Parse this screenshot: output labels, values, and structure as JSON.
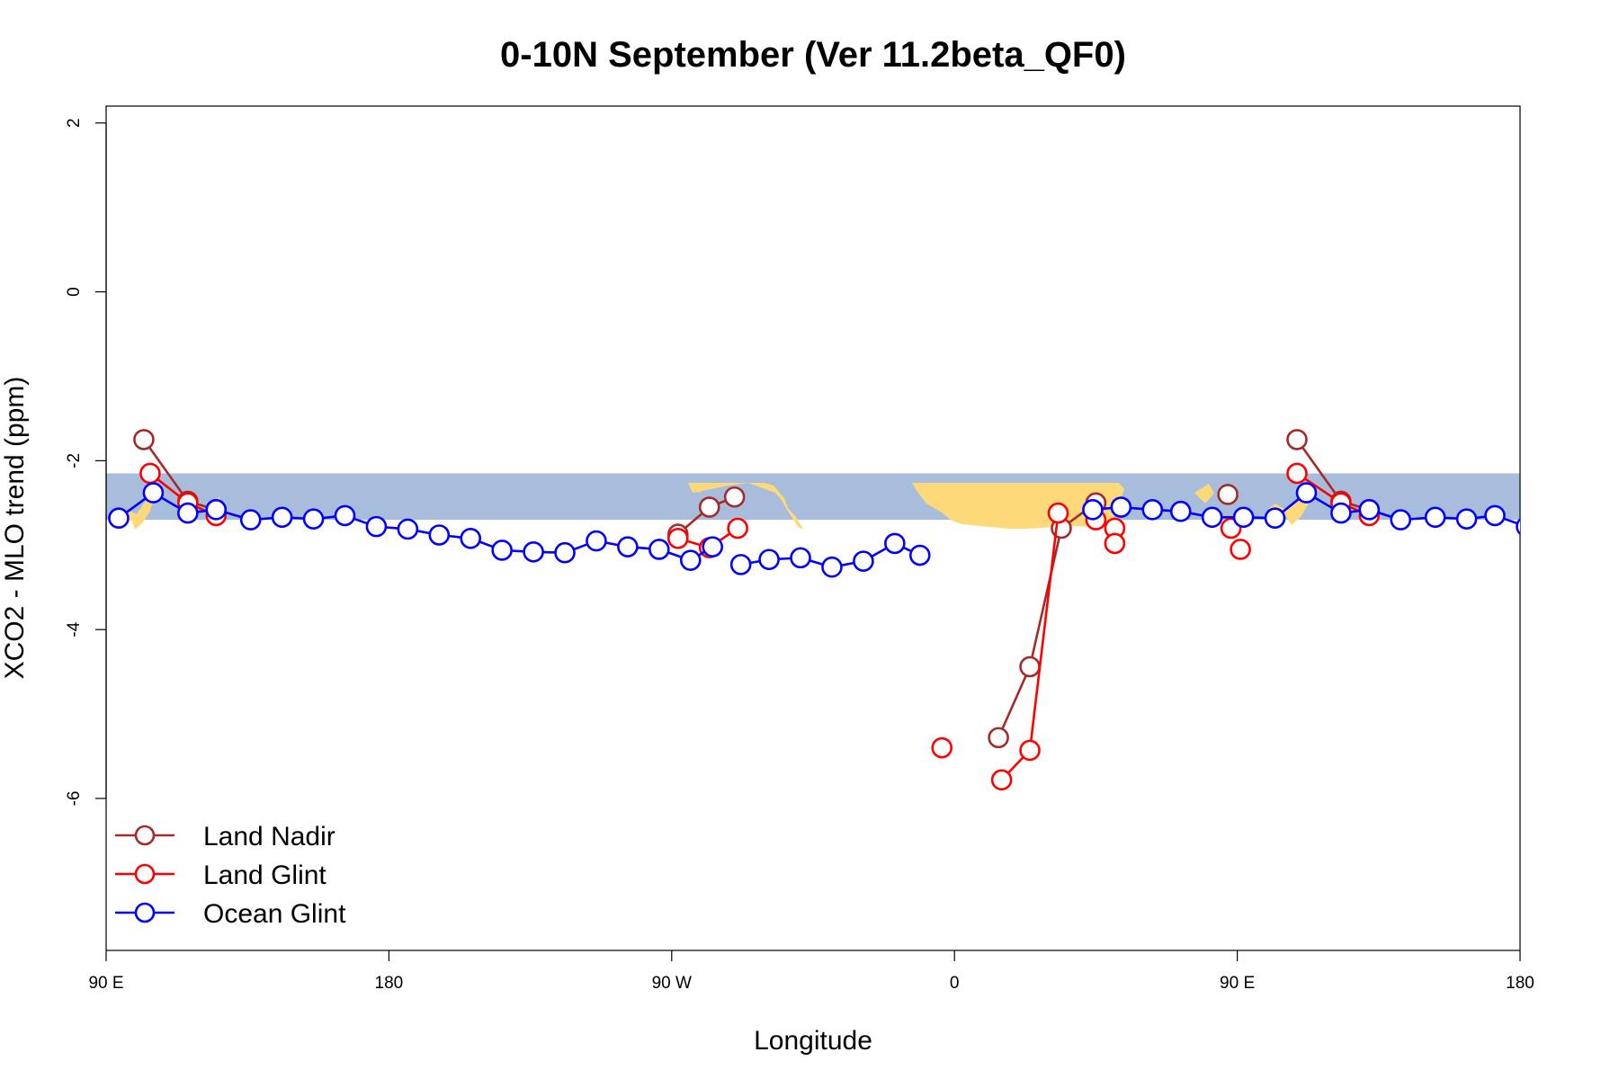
{
  "chart_data": {
    "type": "line",
    "title": "0-10N September (Ver 11.2beta_QF0)",
    "xlabel": "Longitude",
    "ylabel": "XCO2 - MLO trend (ppm)",
    "xlim": [
      90,
      540
    ],
    "ylim": [
      -7.8,
      2.2
    ],
    "x_ticks": [
      {
        "value": 90,
        "label": "90 E"
      },
      {
        "value": 180,
        "label": "180"
      },
      {
        "value": 270,
        "label": "90 W"
      },
      {
        "value": 360,
        "label": "0"
      },
      {
        "value": 450,
        "label": "90 E"
      },
      {
        "value": 540,
        "label": "180"
      }
    ],
    "y_ticks": [
      {
        "value": 2,
        "label": "2"
      },
      {
        "value": 0,
        "label": "0"
      },
      {
        "value": -2,
        "label": "-2"
      },
      {
        "value": -4,
        "label": "-4"
      },
      {
        "value": -6,
        "label": "-6"
      }
    ],
    "background_band": {
      "y_range": [
        -2.7,
        -2.15
      ],
      "ocean_color": "#a8bddb",
      "land_color": "#fdd97a"
    },
    "legend_position": "bottom-left",
    "series": [
      {
        "name": "Land Nadir",
        "color": "#a52a2a",
        "segments": [
          [
            [
              102,
              -1.75
            ],
            [
              116,
              -2.48
            ],
            [
              125,
              -2.58
            ]
          ],
          [
            [
              272,
              -2.87
            ],
            [
              282,
              -2.55
            ],
            [
              290,
              -2.43
            ]
          ],
          [
            [
              374,
              -5.28
            ],
            [
              384,
              -4.44
            ],
            [
              394,
              -2.8
            ],
            [
              405,
              -2.5
            ]
          ],
          [
            [
              469,
              -1.75
            ],
            [
              483,
              -2.48
            ],
            [
              492,
              -2.58
            ]
          ]
        ],
        "points": [
          [
            447,
            -2.4
          ]
        ]
      },
      {
        "name": "Land Glint",
        "color": "#ff0000",
        "segments": [
          [
            [
              104,
              -2.15
            ],
            [
              116,
              -2.5
            ],
            [
              125,
              -2.65
            ]
          ],
          [
            [
              272,
              -2.92
            ],
            [
              282,
              -3.03
            ],
            [
              291,
              -2.8
            ]
          ],
          [
            [
              375,
              -5.78
            ],
            [
              384,
              -5.43
            ],
            [
              393,
              -2.62
            ]
          ],
          [
            [
              469,
              -2.15
            ],
            [
              483,
              -2.5
            ],
            [
              492,
              -2.65
            ]
          ]
        ],
        "points": [
          [
            356,
            -5.4
          ],
          [
            405,
            -2.7
          ],
          [
            411,
            -2.8
          ],
          [
            411,
            -2.98
          ],
          [
            448,
            -2.8
          ],
          [
            451,
            -3.05
          ]
        ]
      },
      {
        "name": "Ocean Glint",
        "color": "#0000ff",
        "segments": [
          [
            [
              94,
              -2.68
            ],
            [
              105,
              -2.38
            ],
            [
              116,
              -2.62
            ],
            [
              125,
              -2.58
            ],
            [
              136,
              -2.7
            ],
            [
              146,
              -2.67
            ],
            [
              156,
              -2.69
            ],
            [
              166,
              -2.65
            ],
            [
              176,
              -2.78
            ],
            [
              186,
              -2.81
            ],
            [
              196,
              -2.88
            ],
            [
              206,
              -2.92
            ],
            [
              216,
              -3.06
            ],
            [
              226,
              -3.08
            ],
            [
              236,
              -3.09
            ],
            [
              246,
              -2.95
            ],
            [
              256,
              -3.02
            ],
            [
              266,
              -3.05
            ],
            [
              276,
              -3.18
            ],
            [
              283,
              -3.02
            ]
          ],
          [
            [
              292,
              -3.23
            ],
            [
              301,
              -3.17
            ],
            [
              311,
              -3.15
            ],
            [
              321,
              -3.26
            ],
            [
              331,
              -3.19
            ],
            [
              341,
              -2.98
            ],
            [
              349,
              -3.12
            ]
          ],
          [
            [
              404,
              -2.58
            ],
            [
              413,
              -2.55
            ],
            [
              423,
              -2.58
            ],
            [
              432,
              -2.6
            ],
            [
              442,
              -2.67
            ],
            [
              452,
              -2.67
            ],
            [
              462,
              -2.68
            ],
            [
              472,
              -2.38
            ],
            [
              483,
              -2.62
            ],
            [
              492,
              -2.58
            ],
            [
              502,
              -2.7
            ],
            [
              513,
              -2.67
            ],
            [
              523,
              -2.69
            ],
            [
              532,
              -2.65
            ],
            [
              542,
              -2.78
            ]
          ]
        ],
        "points": []
      }
    ]
  }
}
